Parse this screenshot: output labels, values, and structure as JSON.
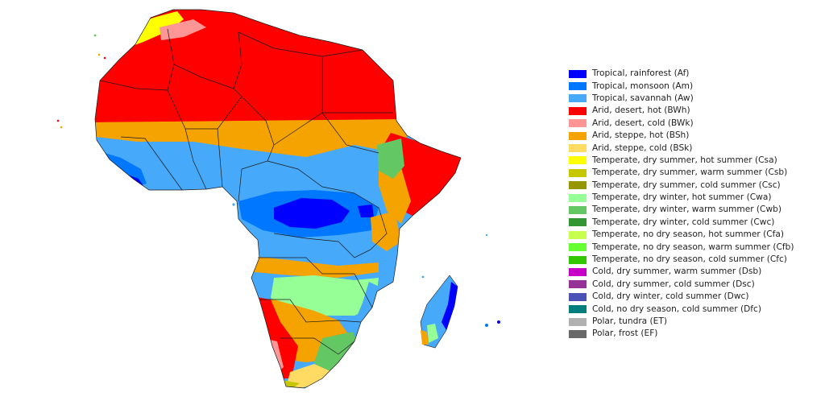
{
  "legend": {
    "items": [
      {
        "label": "Tropical, rainforest (Af)",
        "color": "#0000fe"
      },
      {
        "label": "Tropical, monsoon (Am)",
        "color": "#0077ff"
      },
      {
        "label": "Tropical, savannah (Aw)",
        "color": "#46a9fa"
      },
      {
        "label": "Arid, desert, hot (BWh)",
        "color": "#fe0000"
      },
      {
        "label": "Arid, desert, cold (BWk)",
        "color": "#fe9695"
      },
      {
        "label": "Arid, steppe, hot (BSh)",
        "color": "#f5a301"
      },
      {
        "label": "Arid, steppe, cold (BSk)",
        "color": "#ffdb63"
      },
      {
        "label": "Temperate, dry summer, hot summer (Csa)",
        "color": "#ffff00"
      },
      {
        "label": "Temperate, dry summer, warm summer (Csb)",
        "color": "#c6c700"
      },
      {
        "label": "Temperate, dry summer, cold summer (Csc)",
        "color": "#969600"
      },
      {
        "label": "Temperate, dry winter, hot summer (Cwa)",
        "color": "#96ff96"
      },
      {
        "label": "Temperate, dry winter, warm summer (Cwb)",
        "color": "#63c764"
      },
      {
        "label": "Temperate, dry winter, cold summer (Cwc)",
        "color": "#329633"
      },
      {
        "label": "Temperate, no dry season, hot summer (Cfa)",
        "color": "#c6ff4e"
      },
      {
        "label": "Temperate, no dry season, warm summer (Cfb)",
        "color": "#66ff33"
      },
      {
        "label": "Temperate, no dry season, cold summer (Cfc)",
        "color": "#33c701"
      },
      {
        "label": "Cold, dry summer, warm summer (Dsb)",
        "color": "#c600c7"
      },
      {
        "label": "Cold, dry summer, cold summer (Dsc)",
        "color": "#963295"
      },
      {
        "label": "Cold, dry winter, cold summer (Dwc)",
        "color": "#4c51b5"
      },
      {
        "label": "Cold, no dry season, cold summer (Dfc)",
        "color": "#007d7d"
      },
      {
        "label": "Polar, tundra (ET)",
        "color": "#b2b2b2"
      },
      {
        "label": "Polar, frost (EF)",
        "color": "#686868"
      }
    ]
  }
}
